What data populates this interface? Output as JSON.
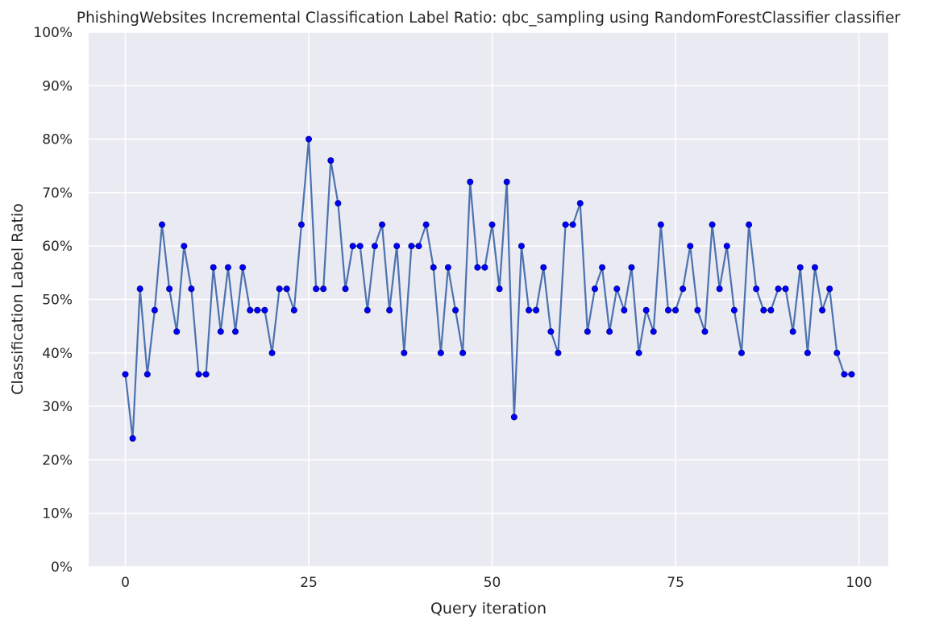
{
  "chart_data": {
    "type": "line",
    "title": "PhishingWebsites Incremental Classification Label Ratio: qbc_sampling using RandomForestClassifier classifier",
    "xlabel": "Query iteration",
    "ylabel": "Classification Label Ratio",
    "xlim": [
      -5,
      104
    ],
    "ylim": [
      0,
      100
    ],
    "xticks": [
      0,
      25,
      50,
      75,
      100
    ],
    "xtick_labels": [
      "0",
      "25",
      "50",
      "75",
      "100"
    ],
    "yticks": [
      0,
      10,
      20,
      30,
      40,
      50,
      60,
      70,
      80,
      90,
      100
    ],
    "ytick_labels": [
      "0%",
      "10%",
      "20%",
      "30%",
      "40%",
      "50%",
      "60%",
      "70%",
      "80%",
      "90%",
      "100%"
    ],
    "grid": true,
    "style": {
      "plot_background": "#eaeaf2",
      "grid_color": "#ffffff",
      "line_color": "#4c72b0",
      "marker_color": "#0000ff",
      "marker_edge_color": "#00008b"
    },
    "series": [
      {
        "x": [
          0,
          1,
          2,
          3,
          4,
          5,
          6,
          7,
          8,
          9,
          10,
          11,
          12,
          13,
          14,
          15,
          16,
          17,
          18,
          19,
          20,
          21,
          22,
          23,
          24,
          25,
          26,
          27,
          28,
          29,
          30,
          31,
          32,
          33,
          34,
          35,
          36,
          37,
          38,
          39,
          40,
          41,
          42,
          43,
          44,
          45,
          46,
          47,
          48,
          49,
          50,
          51,
          52,
          53,
          54,
          55,
          56,
          57,
          58,
          59,
          60,
          61,
          62,
          63,
          64,
          65,
          66,
          67,
          68,
          69,
          70,
          71,
          72,
          73,
          74,
          75,
          76,
          77,
          78,
          79,
          80,
          81,
          82,
          83,
          84,
          85,
          86,
          87,
          88,
          89,
          90,
          91,
          92,
          93,
          94,
          95,
          96,
          97,
          98,
          99
        ],
        "values": [
          36,
          24,
          52,
          36,
          48,
          64,
          52,
          44,
          60,
          52,
          36,
          36,
          56,
          44,
          56,
          44,
          56,
          48,
          48,
          48,
          40,
          52,
          52,
          48,
          64,
          80,
          52,
          52,
          76,
          68,
          52,
          60,
          60,
          48,
          60,
          64,
          48,
          60,
          40,
          60,
          60,
          64,
          56,
          40,
          56,
          48,
          40,
          72,
          56,
          56,
          64,
          52,
          72,
          28,
          60,
          48,
          48,
          56,
          44,
          40,
          64,
          64,
          68,
          44,
          52,
          56,
          44,
          52,
          48,
          56,
          40,
          48,
          44,
          64,
          48,
          48,
          52,
          60,
          48,
          44,
          64,
          52,
          60,
          48,
          40,
          64,
          52,
          48,
          48,
          52,
          52,
          44,
          56,
          40,
          56,
          48,
          52,
          40,
          36,
          36
        ]
      }
    ]
  }
}
